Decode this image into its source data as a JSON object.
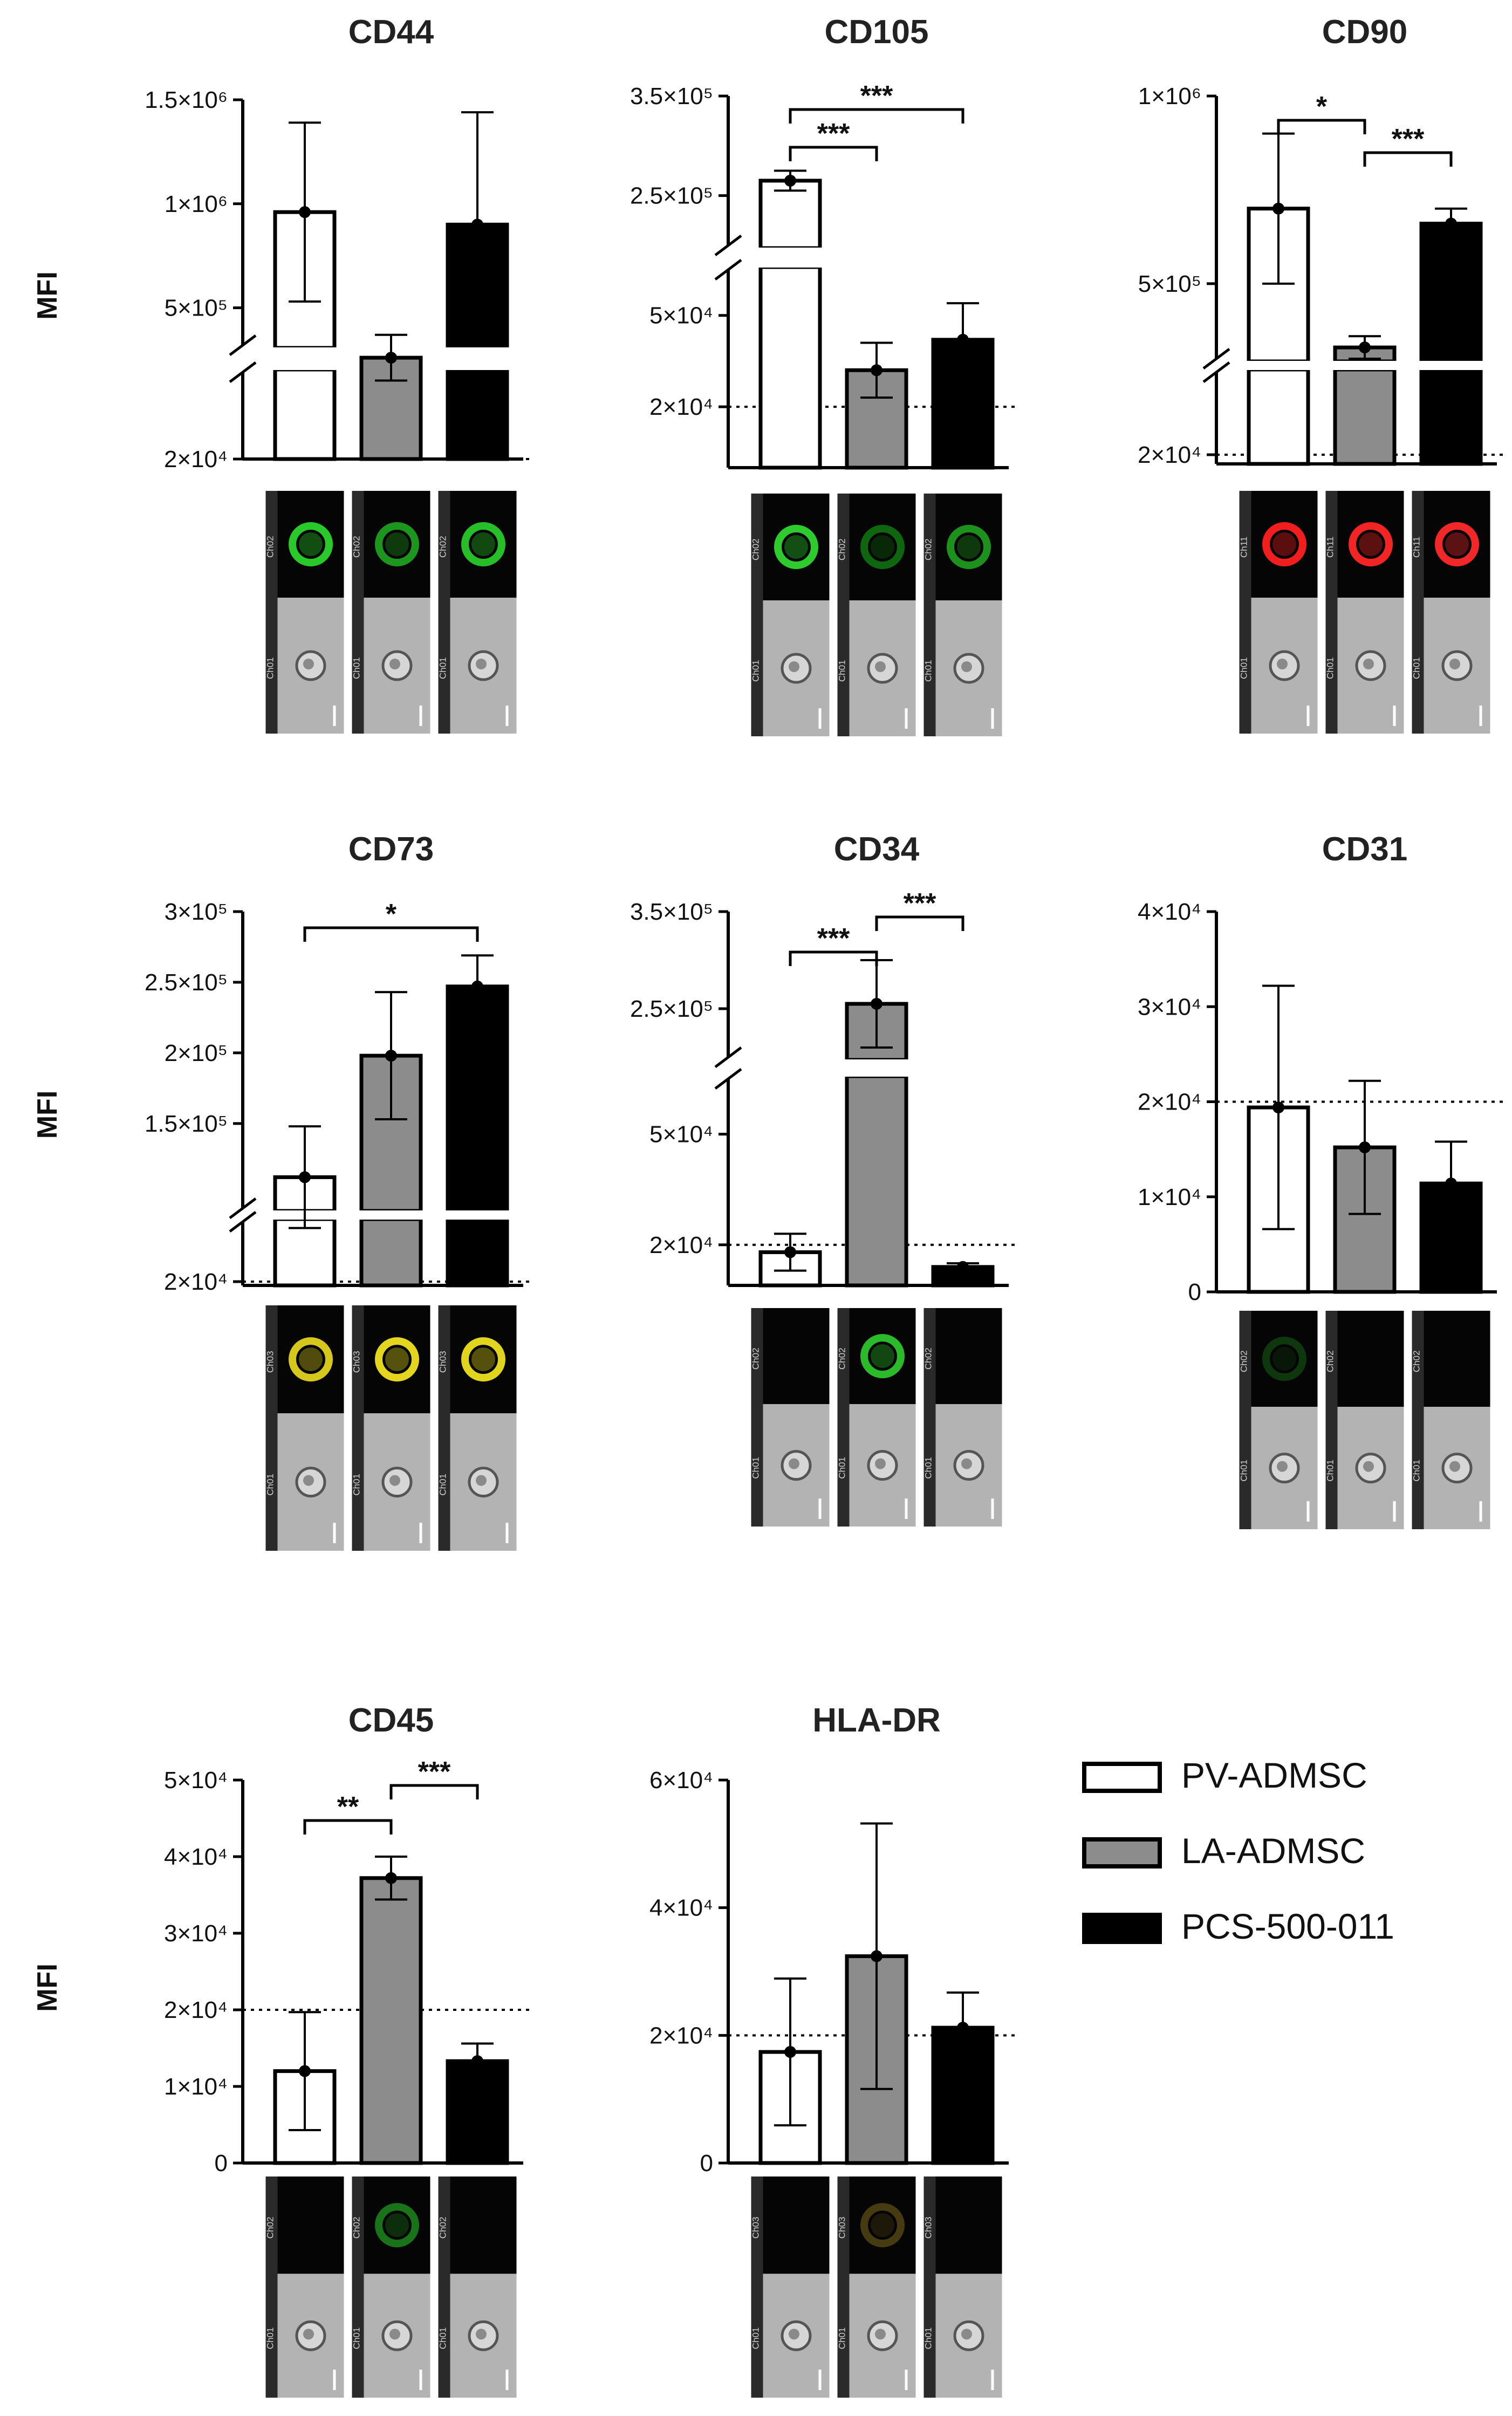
{
  "y_axis_label": "MFI",
  "legend": {
    "placement": "right",
    "entries": [
      {
        "name": "PV-ADMSC",
        "color": "#ffffff"
      },
      {
        "name": "LA-ADMSC",
        "color": "#8c8c8c"
      },
      {
        "name": "PCS-500-011",
        "color": "#000000"
      }
    ]
  },
  "image_channels": {
    "CD44": "Ch02",
    "CD105": "Ch02",
    "CD90": "Ch11",
    "CD73": "Ch03",
    "CD34": "Ch02",
    "CD31": "Ch02",
    "CD45": "Ch02",
    "HLA-DR": "Ch03",
    "brightfield": "Ch01"
  },
  "chart_data": [
    {
      "type": "bar",
      "title": "CD44",
      "categories": [
        "PV-ADMSC",
        "LA-ADMSC",
        "PCS-500-011"
      ],
      "values": [
        960000,
        260000,
        900000
      ],
      "error": [
        430000,
        110000,
        540000
      ],
      "threshold": 20000,
      "broken_axis": true,
      "yticks": [
        {
          "label": "1.5×10⁶",
          "value": 1500000
        },
        {
          "label": "1×10⁶",
          "value": 1000000
        },
        {
          "label": "5×10⁵",
          "value": 500000
        },
        {
          "label": "2×10⁴",
          "value": 20000
        }
      ],
      "significance": [],
      "ylabel": "MFI",
      "grid": false
    },
    {
      "type": "bar",
      "title": "CD105",
      "categories": [
        "PV-ADMSC",
        "LA-ADMSC",
        "PCS-500-011"
      ],
      "values": [
        265000,
        32000,
        42000
      ],
      "error": [
        10000,
        9000,
        12000
      ],
      "threshold": 20000,
      "broken_axis": true,
      "yticks": [
        {
          "label": "3.5×10⁵",
          "value": 350000
        },
        {
          "label": "2.5×10⁵",
          "value": 250000
        },
        {
          "label": "5×10⁴",
          "value": 50000
        },
        {
          "label": "2×10⁴",
          "value": 20000
        }
      ],
      "significance": [
        {
          "from": 0,
          "to": 1,
          "label": "***"
        },
        {
          "from": 0,
          "to": 2,
          "label": "***"
        }
      ],
      "grid": false
    },
    {
      "type": "bar",
      "title": "CD90",
      "categories": [
        "PV-ADMSC",
        "LA-ADMSC",
        "PCS-500-011"
      ],
      "values": [
        700000,
        330000,
        660000
      ],
      "error": [
        200000,
        30000,
        40000
      ],
      "threshold": 20000,
      "broken_axis": true,
      "yticks": [
        {
          "label": "1×10⁶",
          "value": 1000000
        },
        {
          "label": "5×10⁵",
          "value": 500000
        },
        {
          "label": "2×10⁴",
          "value": 20000
        }
      ],
      "significance": [
        {
          "from": 0,
          "to": 1,
          "label": "*"
        },
        {
          "from": 1,
          "to": 2,
          "label": "***"
        }
      ],
      "grid": false
    },
    {
      "type": "bar",
      "title": "CD73",
      "categories": [
        "PV-ADMSC",
        "LA-ADMSC",
        "PCS-500-011"
      ],
      "values": [
        112000,
        198000,
        247000
      ],
      "error": [
        36000,
        45000,
        22000
      ],
      "threshold": 20000,
      "broken_axis": true,
      "yticks": [
        {
          "label": "3×10⁵",
          "value": 300000
        },
        {
          "label": "2.5×10⁵",
          "value": 250000
        },
        {
          "label": "2×10⁵",
          "value": 200000
        },
        {
          "label": "1.5×10⁵",
          "value": 150000
        },
        {
          "label": "2×10⁴",
          "value": 20000
        }
      ],
      "significance": [
        {
          "from": 0,
          "to": 2,
          "label": "*"
        }
      ],
      "ylabel": "MFI",
      "grid": false
    },
    {
      "type": "bar",
      "title": "CD34",
      "categories": [
        "PV-ADMSC",
        "LA-ADMSC",
        "PCS-500-011"
      ],
      "values": [
        18000,
        255000,
        14000
      ],
      "error": [
        5000,
        45000,
        1000
      ],
      "threshold": 20000,
      "broken_axis": true,
      "yticks": [
        {
          "label": "3.5×10⁵",
          "value": 350000
        },
        {
          "label": "2.5×10⁵",
          "value": 250000
        },
        {
          "label": "5×10⁴",
          "value": 50000
        },
        {
          "label": "2×10⁴",
          "value": 20000
        }
      ],
      "significance": [
        {
          "from": 0,
          "to": 1,
          "label": "***"
        },
        {
          "from": 1,
          "to": 2,
          "label": "***"
        }
      ],
      "grid": false
    },
    {
      "type": "bar",
      "title": "CD31",
      "categories": [
        "PV-ADMSC",
        "LA-ADMSC",
        "PCS-500-011"
      ],
      "values": [
        19400,
        15200,
        11400
      ],
      "error": [
        12800,
        7000,
        4400
      ],
      "threshold": 20000,
      "broken_axis": false,
      "yticks": [
        {
          "label": "4×10⁴",
          "value": 40000
        },
        {
          "label": "3×10⁴",
          "value": 30000
        },
        {
          "label": "2×10⁴",
          "value": 20000
        },
        {
          "label": "1×10⁴",
          "value": 10000
        },
        {
          "label": "0",
          "value": 0
        }
      ],
      "significance": [],
      "grid": false
    },
    {
      "type": "bar",
      "title": "CD45",
      "categories": [
        "PV-ADMSC",
        "LA-ADMSC",
        "PCS-500-011"
      ],
      "values": [
        12000,
        37200,
        13300
      ],
      "error": [
        7700,
        2800,
        2300
      ],
      "threshold": 20000,
      "broken_axis": false,
      "yticks": [
        {
          "label": "5×10⁴",
          "value": 50000
        },
        {
          "label": "4×10⁴",
          "value": 40000
        },
        {
          "label": "3×10⁴",
          "value": 30000
        },
        {
          "label": "2×10⁴",
          "value": 20000
        },
        {
          "label": "1×10⁴",
          "value": 10000
        },
        {
          "label": "0",
          "value": 0
        }
      ],
      "significance": [
        {
          "from": 0,
          "to": 1,
          "label": "**"
        },
        {
          "from": 1,
          "to": 2,
          "label": "***"
        }
      ],
      "ylabel": "MFI",
      "grid": false
    },
    {
      "type": "bar",
      "title": "HLA-DR",
      "categories": [
        "PV-ADMSC",
        "LA-ADMSC",
        "PCS-500-011"
      ],
      "values": [
        17400,
        32400,
        21200
      ],
      "error": [
        11500,
        20800,
        5500
      ],
      "threshold": 20000,
      "broken_axis": false,
      "yticks": [
        {
          "label": "6×10⁴",
          "value": 60000
        },
        {
          "label": "4×10⁴",
          "value": 40000
        },
        {
          "label": "2×10⁴",
          "value": 20000
        },
        {
          "label": "0",
          "value": 0
        }
      ],
      "significance": [],
      "grid": false
    }
  ]
}
